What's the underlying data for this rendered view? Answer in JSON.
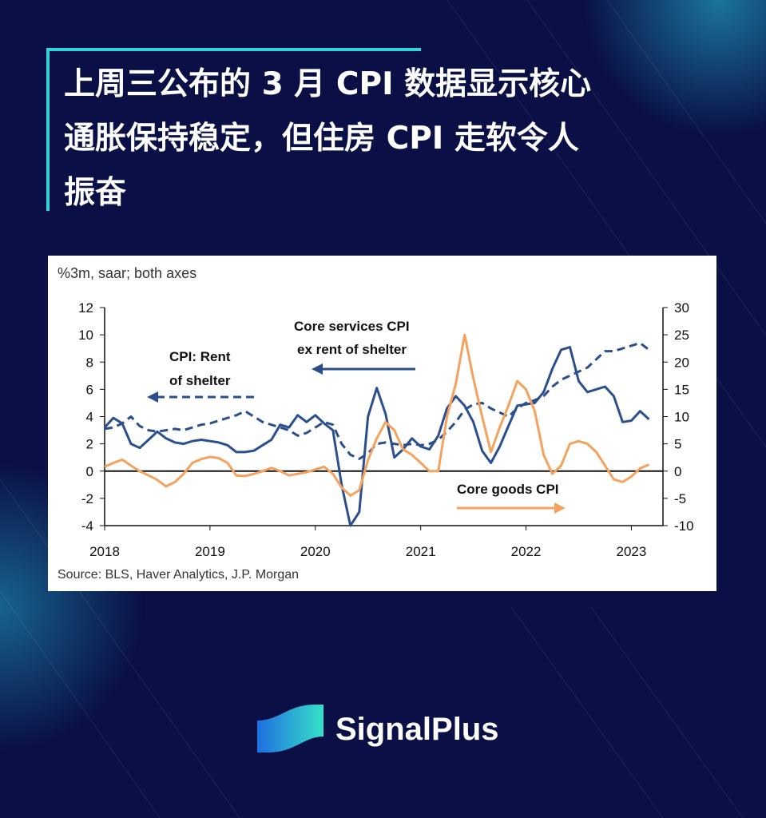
{
  "header": {
    "title_lines": [
      "上周三公布的 3 月 CPI 数据显示核心",
      "通胀保持稳定，但住房 CPI 走软令人",
      "振奋"
    ]
  },
  "chart_data": {
    "type": "line",
    "subtitle": "%3m, saar; both axes",
    "source": "Source: BLS, Haver Analytics, J.P. Morgan",
    "x": [
      2018,
      2018.083,
      2018.167,
      2018.25,
      2018.333,
      2018.417,
      2018.5,
      2018.583,
      2018.667,
      2018.75,
      2018.833,
      2018.917,
      2019,
      2019.083,
      2019.167,
      2019.25,
      2019.333,
      2019.417,
      2019.5,
      2019.583,
      2019.667,
      2019.75,
      2019.833,
      2019.917,
      2020,
      2020.083,
      2020.167,
      2020.25,
      2020.333,
      2020.417,
      2020.5,
      2020.583,
      2020.667,
      2020.75,
      2020.833,
      2020.917,
      2021,
      2021.083,
      2021.167,
      2021.25,
      2021.333,
      2021.417,
      2021.5,
      2021.583,
      2021.667,
      2021.75,
      2021.833,
      2021.917,
      2022,
      2022.083,
      2022.167,
      2022.25,
      2022.333,
      2022.417,
      2022.5,
      2022.583,
      2022.667,
      2022.75,
      2022.833,
      2022.917,
      2023,
      2023.083,
      2023.167
    ],
    "series": [
      {
        "name": "Core services CPI ex rent of shelter",
        "color": "#2b4f8e",
        "style": "solid",
        "axis": "y",
        "values": [
          3.2,
          3.9,
          3.5,
          2.0,
          1.7,
          2.3,
          2.9,
          2.4,
          2.1,
          2.0,
          2.2,
          2.3,
          2.2,
          2.1,
          1.9,
          1.4,
          1.4,
          1.5,
          1.9,
          2.3,
          3.4,
          3.2,
          4.1,
          3.6,
          4.1,
          3.5,
          3.0,
          -1.0,
          -4.0,
          -3.0,
          4.0,
          6.1,
          4.2,
          1.0,
          1.6,
          2.4,
          1.8,
          1.6,
          2.6,
          4.6,
          5.5,
          4.8,
          3.6,
          1.5,
          0.6,
          1.8,
          3.3,
          4.8,
          4.9,
          5.0,
          5.8,
          7.5,
          8.9,
          9.1,
          6.6,
          5.8,
          6.0,
          6.2,
          5.5,
          3.6,
          3.7,
          4.4,
          3.8
        ]
      },
      {
        "name": "CPI: Rent of shelter",
        "color": "#2b4f8e",
        "style": "dashed",
        "axis": "y",
        "values": [
          3.1,
          3.2,
          3.5,
          4.0,
          3.3,
          3.0,
          2.9,
          3.0,
          3.1,
          3.0,
          3.2,
          3.4,
          3.5,
          3.7,
          3.9,
          4.1,
          4.4,
          4.0,
          3.6,
          3.4,
          3.2,
          3.0,
          2.6,
          2.8,
          3.2,
          3.6,
          3.4,
          2.0,
          1.2,
          0.9,
          1.3,
          2.0,
          2.1,
          2.0,
          1.9,
          2.0,
          1.9,
          2.0,
          2.3,
          2.9,
          3.6,
          4.5,
          4.9,
          5.0,
          4.6,
          4.3,
          4.0,
          4.6,
          5.0,
          5.2,
          5.5,
          6.2,
          6.7,
          7.0,
          7.3,
          7.6,
          8.2,
          8.8,
          8.8,
          9.0,
          9.2,
          9.4,
          8.9
        ]
      },
      {
        "name": "Core goods CPI",
        "color": "#f4a25e",
        "style": "solid",
        "axis": "y2",
        "values": [
          0.8,
          1.5,
          2.1,
          1.0,
          0,
          -0.8,
          -1.6,
          -2.8,
          -2.0,
          -0.5,
          1.5,
          2.2,
          2.6,
          2.4,
          1.5,
          -0.8,
          -0.9,
          -0.5,
          0,
          0.6,
          0,
          -0.8,
          -0.5,
          -0.2,
          0.3,
          0.8,
          -0.5,
          -3.0,
          -4.5,
          -3.5,
          2.0,
          6.0,
          9.0,
          7.5,
          4.0,
          3.0,
          1.5,
          0,
          0,
          10,
          16,
          25,
          17,
          10,
          3.5,
          8,
          12,
          16.5,
          15,
          11,
          3,
          -0.5,
          1,
          5,
          5.5,
          5,
          3.5,
          1,
          -1.5,
          -2,
          -1,
          0.5,
          1.2
        ]
      }
    ],
    "annotations": [
      "Core services CPI",
      "ex rent of shelter",
      "CPI: Rent",
      "of shelter",
      "Core goods CPI"
    ],
    "xlim": [
      2018,
      2023.3
    ],
    "xticks": [
      2018,
      2019,
      2020,
      2021,
      2022,
      2023
    ],
    "ylim": [
      -4,
      12
    ],
    "yticks": [
      12,
      10,
      8,
      6,
      4,
      2,
      0,
      -2,
      -4
    ],
    "y2lim": [
      -10,
      30
    ],
    "y2ticks": [
      30,
      25,
      20,
      15,
      10,
      5,
      0,
      -5,
      -10
    ]
  },
  "brand": {
    "name": "SignalPlus"
  }
}
